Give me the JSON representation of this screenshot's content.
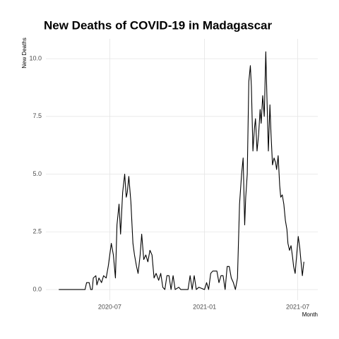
{
  "chart_data": {
    "type": "line",
    "title": "New Deaths of COVID-19 in Madagascar",
    "x_label": "Month",
    "y_label": "New Deaths",
    "grid": true,
    "xlim": [
      "2020-02-28",
      "2021-08-09"
    ],
    "xticks": [
      "2020-07",
      "2021-01",
      "2021-07"
    ],
    "ylim": [
      -0.46,
      10.86
    ],
    "yticks": [
      {
        "value": 0,
        "label": "0.0"
      },
      2.5,
      {
        "value": 5,
        "label": "5.0"
      },
      7.5,
      {
        "value": 10,
        "label": "10.0"
      }
    ],
    "x": [
      "2020-03-24",
      "2020-05-14",
      "2020-05-17",
      "2020-05-22",
      "2020-05-25",
      "2020-05-28",
      "2020-05-30",
      "2020-06-04",
      "2020-06-06",
      "2020-06-10",
      "2020-06-15",
      "2020-06-19",
      "2020-06-24",
      "2020-06-28",
      "2020-07-04",
      "2020-07-08",
      "2020-07-12",
      "2020-07-15",
      "2020-07-19",
      "2020-07-22",
      "2020-07-26",
      "2020-07-30",
      "2020-08-02",
      "2020-08-04",
      "2020-08-07",
      "2020-08-11",
      "2020-08-15",
      "2020-08-18",
      "2020-08-22",
      "2020-08-25",
      "2020-08-29",
      "2020-09-01",
      "2020-09-05",
      "2020-09-09",
      "2020-09-13",
      "2020-09-17",
      "2020-09-21",
      "2020-09-25",
      "2020-09-29",
      "2020-10-04",
      "2020-10-08",
      "2020-10-12",
      "2020-10-16",
      "2020-10-20",
      "2020-10-24",
      "2020-10-28",
      "2020-11-01",
      "2020-11-05",
      "2020-11-12",
      "2020-11-16",
      "2020-11-30",
      "2020-12-04",
      "2020-12-08",
      "2020-12-12",
      "2020-12-16",
      "2020-12-21",
      "2021-01-01",
      "2021-01-05",
      "2021-01-09",
      "2021-01-13",
      "2021-01-17",
      "2021-01-25",
      "2021-01-29",
      "2021-02-02",
      "2021-02-06",
      "2021-02-10",
      "2021-02-14",
      "2021-02-18",
      "2021-02-22",
      "2021-02-26",
      "2021-03-02",
      "2021-03-06",
      "2021-03-10",
      "2021-03-14",
      "2021-03-17",
      "2021-03-20",
      "2021-03-22",
      "2021-03-25",
      "2021-03-28",
      "2021-03-31",
      "2021-04-02",
      "2021-04-05",
      "2021-04-08",
      "2021-04-10",
      "2021-04-13",
      "2021-04-16",
      "2021-04-19",
      "2021-04-21",
      "2021-04-24",
      "2021-04-27",
      "2021-04-30",
      "2021-05-02",
      "2021-05-05",
      "2021-05-08",
      "2021-05-10",
      "2021-05-13",
      "2021-05-16",
      "2021-05-19",
      "2021-05-21",
      "2021-05-24",
      "2021-05-27",
      "2021-05-29",
      "2021-06-01",
      "2021-06-04",
      "2021-06-07",
      "2021-06-10",
      "2021-06-12",
      "2021-06-15",
      "2021-06-18",
      "2021-06-21",
      "2021-06-23",
      "2021-06-26",
      "2021-06-29",
      "2021-07-02",
      "2021-07-05",
      "2021-07-07",
      "2021-07-10",
      "2021-07-13"
    ],
    "series": [
      {
        "name": "New Deaths",
        "color": "#000000",
        "values": [
          0,
          0,
          0.3,
          0.3,
          0,
          0,
          0.5,
          0.6,
          0.2,
          0.5,
          0.3,
          0.6,
          0.5,
          1.0,
          2.0,
          1.5,
          0.5,
          2.8,
          3.7,
          2.4,
          4.2,
          5.0,
          4.0,
          4.2,
          4.9,
          3.8,
          2.0,
          1.5,
          1.0,
          0.7,
          1.5,
          2.4,
          1.3,
          1.5,
          1.2,
          1.7,
          1.5,
          0.5,
          0.7,
          0.4,
          0.7,
          0.1,
          0,
          0.6,
          0.6,
          0,
          0.6,
          0,
          0.1,
          0,
          0,
          0.6,
          0,
          0.6,
          0,
          0.1,
          0,
          0.3,
          0,
          0.7,
          0.8,
          0.8,
          0.3,
          0.6,
          0.6,
          0,
          1.0,
          1.0,
          0.5,
          0.3,
          0,
          0.5,
          3.7,
          5.0,
          5.7,
          2.8,
          4.0,
          5.0,
          9.0,
          9.7,
          8.8,
          6.0,
          7.0,
          7.4,
          6.0,
          6.7,
          7.8,
          7.2,
          8.4,
          7.5,
          10.3,
          8.5,
          6.0,
          8.0,
          6.8,
          5.4,
          5.7,
          5.5,
          5.2,
          5.8,
          4.5,
          4.0,
          4.1,
          3.7,
          3.0,
          2.6,
          2.0,
          1.7,
          1.9,
          1.4,
          1.0,
          0.7,
          1.5,
          2.3,
          1.8,
          1.3,
          0.6,
          1.2
        ]
      }
    ]
  }
}
